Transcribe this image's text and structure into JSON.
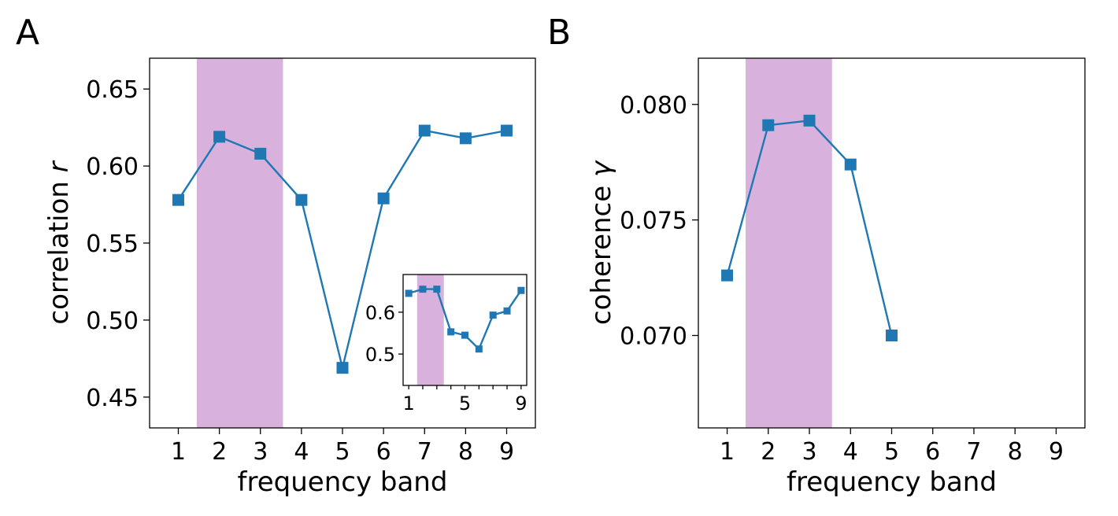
{
  "colors": {
    "series": "#1f77b4",
    "highlight": "#d8b2dc"
  },
  "chart_data": [
    {
      "type": "line",
      "panel": "A",
      "xlabel": "frequency band",
      "ylabel_main": "correlation ",
      "ylabel_symbol": "r",
      "x": [
        1,
        2,
        3,
        4,
        5,
        6,
        7,
        8,
        9
      ],
      "values": [
        0.578,
        0.619,
        0.608,
        0.578,
        0.469,
        0.579,
        0.623,
        0.618,
        0.623
      ],
      "xlim": [
        0.3,
        9.7
      ],
      "ylim": [
        0.43,
        0.67
      ],
      "xticks": [
        "1",
        "2",
        "3",
        "4",
        "5",
        "6",
        "7",
        "8",
        "9"
      ],
      "yticks": [
        0.45,
        0.5,
        0.55,
        0.6,
        0.65
      ],
      "ytick_labels": [
        "0.45",
        "0.50",
        "0.55",
        "0.60",
        "0.65"
      ],
      "highlight_band": [
        1.45,
        3.55
      ],
      "marker": "square",
      "inset": {
        "type": "line",
        "x": [
          1,
          2,
          3,
          4,
          5,
          6,
          7,
          8,
          9
        ],
        "values": [
          0.645,
          0.655,
          0.655,
          0.553,
          0.545,
          0.512,
          0.593,
          0.603,
          0.652
        ],
        "xlim": [
          0.6,
          9.4
        ],
        "ylim": [
          0.425,
          0.69
        ],
        "xtick_positions": [
          1,
          2,
          3,
          4,
          5,
          6,
          7,
          8,
          9
        ],
        "xticks_labeled": [
          "1",
          "5",
          "9"
        ],
        "yticks": [
          0.5,
          0.6
        ],
        "ytick_labels": [
          "0.5",
          "0.6"
        ],
        "highlight_band": [
          1.6,
          3.5
        ]
      }
    },
    {
      "type": "line",
      "panel": "B",
      "xlabel": "frequency band",
      "ylabel_main": "coherence ",
      "ylabel_symbol": "γ",
      "x": [
        1,
        2,
        3,
        4,
        5
      ],
      "values": [
        0.0726,
        0.0791,
        0.0793,
        0.0774,
        0.07
      ],
      "xlim": [
        0.3,
        9.7
      ],
      "ylim": [
        0.066,
        0.082
      ],
      "xticks": [
        "1",
        "2",
        "3",
        "4",
        "5",
        "6",
        "7",
        "8",
        "9"
      ],
      "yticks": [
        0.07,
        0.075,
        0.08
      ],
      "ytick_labels": [
        "0.070",
        "0.075",
        "0.080"
      ],
      "highlight_band": [
        1.45,
        3.55
      ],
      "marker": "square"
    }
  ]
}
